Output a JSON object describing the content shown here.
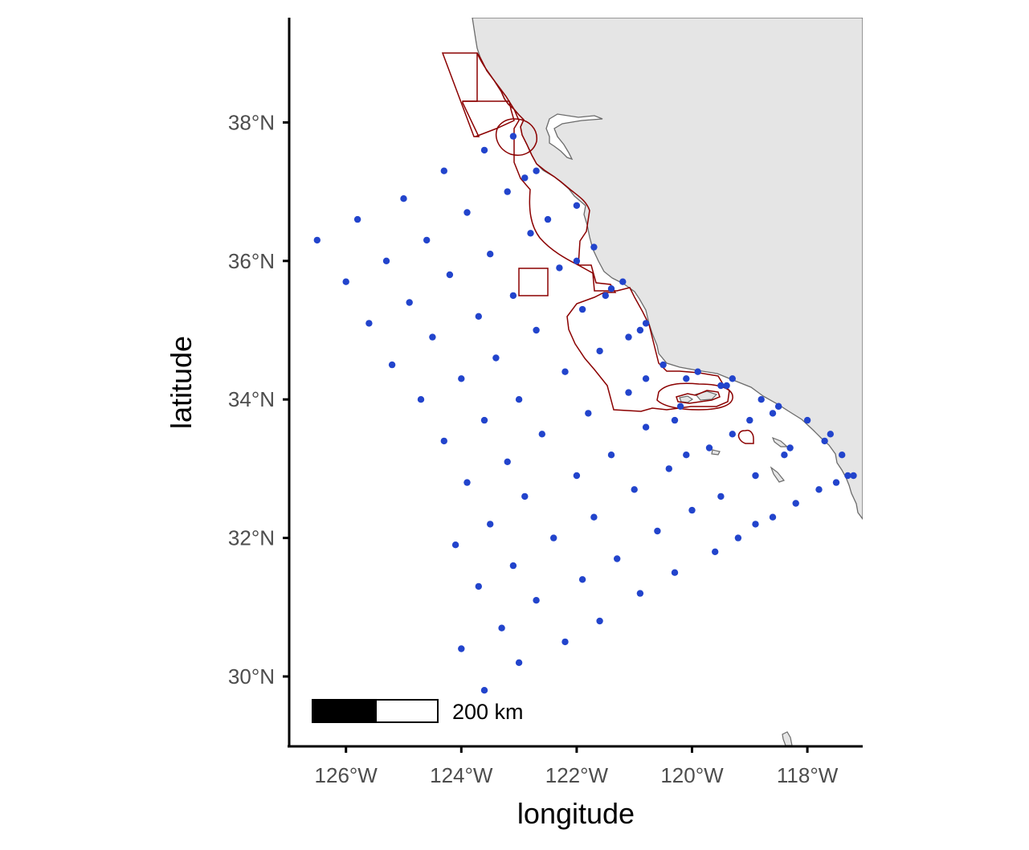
{
  "chart_data": {
    "type": "scatter",
    "title": "",
    "xlabel": "longitude",
    "ylabel": "latitude",
    "xlim": [
      -127.0,
      -117.0
    ],
    "ylim": [
      29.0,
      39.5
    ],
    "xticks": [
      -126,
      -124,
      -122,
      -120,
      -118
    ],
    "yticks": [
      30,
      32,
      34,
      36,
      38
    ],
    "xtick_labels": [
      "126°W",
      "124°W",
      "122°W",
      "120°W",
      "118°W"
    ],
    "ytick_labels": [
      "30°N",
      "32°N",
      "34°N",
      "36°N",
      "38°N"
    ],
    "scale_bar": {
      "label": "200 km"
    },
    "colors": {
      "points": "#2244cc",
      "zones": "#8b0000",
      "land": "#e5e5e5",
      "coast": "#6b6b6b",
      "axis": "#000000"
    },
    "series": [
      {
        "values": [
          [
            -126.5,
            36.3
          ],
          [
            -126.0,
            35.7
          ],
          [
            -125.8,
            36.6
          ],
          [
            -125.6,
            35.1
          ],
          [
            -125.3,
            36.0
          ],
          [
            -125.2,
            34.5
          ],
          [
            -125.0,
            36.9
          ],
          [
            -124.9,
            35.4
          ],
          [
            -124.7,
            34.0
          ],
          [
            -124.6,
            36.3
          ],
          [
            -124.5,
            34.9
          ],
          [
            -124.3,
            37.3
          ],
          [
            -124.3,
            33.4
          ],
          [
            -124.2,
            35.8
          ],
          [
            -124.1,
            31.9
          ],
          [
            -124.0,
            34.3
          ],
          [
            -124.0,
            30.4
          ],
          [
            -123.9,
            36.7
          ],
          [
            -123.9,
            32.8
          ],
          [
            -123.7,
            35.2
          ],
          [
            -123.7,
            31.3
          ],
          [
            -123.6,
            37.6
          ],
          [
            -123.6,
            33.7
          ],
          [
            -123.6,
            29.8
          ],
          [
            -123.5,
            36.1
          ],
          [
            -123.5,
            32.2
          ],
          [
            -123.4,
            34.6
          ],
          [
            -123.3,
            30.7
          ],
          [
            -123.2,
            37.0
          ],
          [
            -123.2,
            33.1
          ],
          [
            -123.1,
            37.8
          ],
          [
            -123.1,
            35.5
          ],
          [
            -123.1,
            31.6
          ],
          [
            -123.0,
            34.0
          ],
          [
            -123.0,
            30.2
          ],
          [
            -122.9,
            37.2
          ],
          [
            -122.9,
            32.6
          ],
          [
            -122.8,
            36.4
          ],
          [
            -122.7,
            35.0
          ],
          [
            -122.7,
            31.1
          ],
          [
            -122.7,
            37.3
          ],
          [
            -122.6,
            33.5
          ],
          [
            -122.5,
            36.6
          ],
          [
            -122.4,
            32.0
          ],
          [
            -122.3,
            35.9
          ],
          [
            -122.2,
            34.4
          ],
          [
            -122.2,
            30.5
          ],
          [
            -122.0,
            36.8
          ],
          [
            -122.0,
            32.9
          ],
          [
            -122.0,
            36.0
          ],
          [
            -121.9,
            35.3
          ],
          [
            -121.9,
            31.4
          ],
          [
            -121.8,
            33.8
          ],
          [
            -121.7,
            36.2
          ],
          [
            -121.7,
            32.3
          ],
          [
            -121.6,
            34.7
          ],
          [
            -121.6,
            30.8
          ],
          [
            -121.5,
            35.5
          ],
          [
            -121.4,
            33.2
          ],
          [
            -121.4,
            35.6
          ],
          [
            -121.3,
            31.7
          ],
          [
            -121.2,
            35.7
          ],
          [
            -121.1,
            34.9
          ],
          [
            -121.1,
            34.1
          ],
          [
            -121.0,
            32.7
          ],
          [
            -120.9,
            31.2
          ],
          [
            -120.9,
            35.0
          ],
          [
            -120.8,
            35.1
          ],
          [
            -120.8,
            34.3
          ],
          [
            -120.8,
            33.6
          ],
          [
            -120.6,
            32.1
          ],
          [
            -120.5,
            34.5
          ],
          [
            -120.4,
            33.0
          ],
          [
            -120.3,
            31.5
          ],
          [
            -120.3,
            33.7
          ],
          [
            -120.2,
            33.9
          ],
          [
            -120.1,
            34.3
          ],
          [
            -120.1,
            33.2
          ],
          [
            -120.0,
            32.4
          ],
          [
            -119.9,
            34.4
          ],
          [
            -119.7,
            33.3
          ],
          [
            -119.6,
            31.8
          ],
          [
            -119.5,
            32.6
          ],
          [
            -119.5,
            34.2
          ],
          [
            -119.4,
            34.2
          ],
          [
            -119.3,
            34.3
          ],
          [
            -119.3,
            33.5
          ],
          [
            -119.2,
            32.0
          ],
          [
            -119.0,
            33.7
          ],
          [
            -118.9,
            32.9
          ],
          [
            -118.9,
            32.2
          ],
          [
            -118.8,
            34.0
          ],
          [
            -118.6,
            33.8
          ],
          [
            -118.6,
            32.3
          ],
          [
            -118.5,
            33.9
          ],
          [
            -118.5,
            33.9
          ],
          [
            -118.4,
            33.2
          ],
          [
            -118.3,
            33.3
          ],
          [
            -118.2,
            32.5
          ],
          [
            -118.0,
            33.7
          ],
          [
            -117.8,
            32.7
          ],
          [
            -117.7,
            33.4
          ],
          [
            -117.6,
            33.5
          ],
          [
            -117.5,
            32.8
          ],
          [
            -117.4,
            33.2
          ],
          [
            -117.3,
            32.9
          ],
          [
            -117.2,
            32.9
          ]
        ]
      }
    ]
  }
}
